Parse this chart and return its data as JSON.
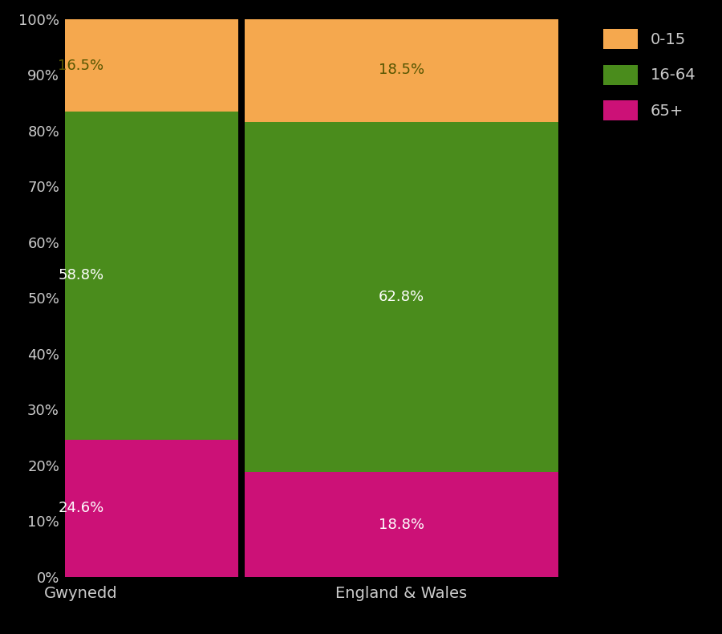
{
  "categories": [
    "Gwynedd",
    "England & Wales"
  ],
  "age_groups": [
    "65+",
    "16-64",
    "0-15"
  ],
  "values": {
    "Gwynedd": [
      24.6,
      58.8,
      16.5
    ],
    "England & Wales": [
      18.8,
      62.8,
      18.5
    ]
  },
  "colors": {
    "65+": "#cc1177",
    "16-64": "#4a8c1c",
    "0-15": "#f5a84e"
  },
  "background_color": "#000000",
  "text_color": "#cccccc",
  "bar_width": 0.98,
  "bar_positions": [
    0,
    1
  ],
  "ylim": [
    0,
    100
  ],
  "ytick_labels": [
    "0%",
    "10%",
    "20%",
    "30%",
    "40%",
    "50%",
    "60%",
    "70%",
    "80%",
    "90%",
    "100%"
  ],
  "ytick_values": [
    0,
    10,
    20,
    30,
    40,
    50,
    60,
    70,
    80,
    90,
    100
  ],
  "legend_labels": [
    "0-15",
    "16-64",
    "65+"
  ],
  "legend_colors": [
    "#f5a84e",
    "#4a8c1c",
    "#cc1177"
  ],
  "label_color_0-15": "#4a4a00",
  "label_color_16-64": "white",
  "label_color_65+": "white"
}
